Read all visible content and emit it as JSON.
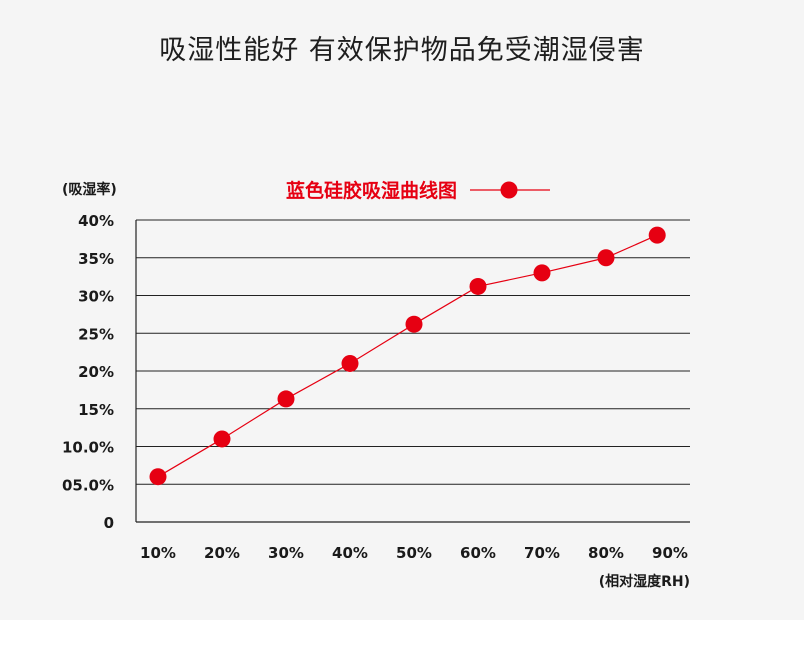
{
  "page": {
    "title": "吸湿性能好 有效保护物品免受潮湿侵害"
  },
  "colors": {
    "series": "#e60012",
    "grid": "#222222",
    "background": "#f5f5f5"
  },
  "chart_data": {
    "type": "line",
    "title": "",
    "xlabel": "(相对湿度RH)",
    "ylabel": "(吸湿率)",
    "x_ticks": [
      "10%",
      "20%",
      "30%",
      "40%",
      "50%",
      "60%",
      "70%",
      "80%",
      "90%"
    ],
    "y_ticks": [
      "0",
      "05.0%",
      "10.0%",
      "15%",
      "20%",
      "25%",
      "30%",
      "35%",
      "40%"
    ],
    "ylim": [
      0,
      40
    ],
    "grid": true,
    "legend_position": "top",
    "series": [
      {
        "name": "蓝色硅胶吸湿曲线图",
        "x": [
          10,
          20,
          30,
          40,
          50,
          60,
          70,
          80,
          88
        ],
        "values": [
          6,
          11,
          16.3,
          21,
          26.2,
          31.2,
          33,
          35,
          38
        ]
      }
    ]
  }
}
